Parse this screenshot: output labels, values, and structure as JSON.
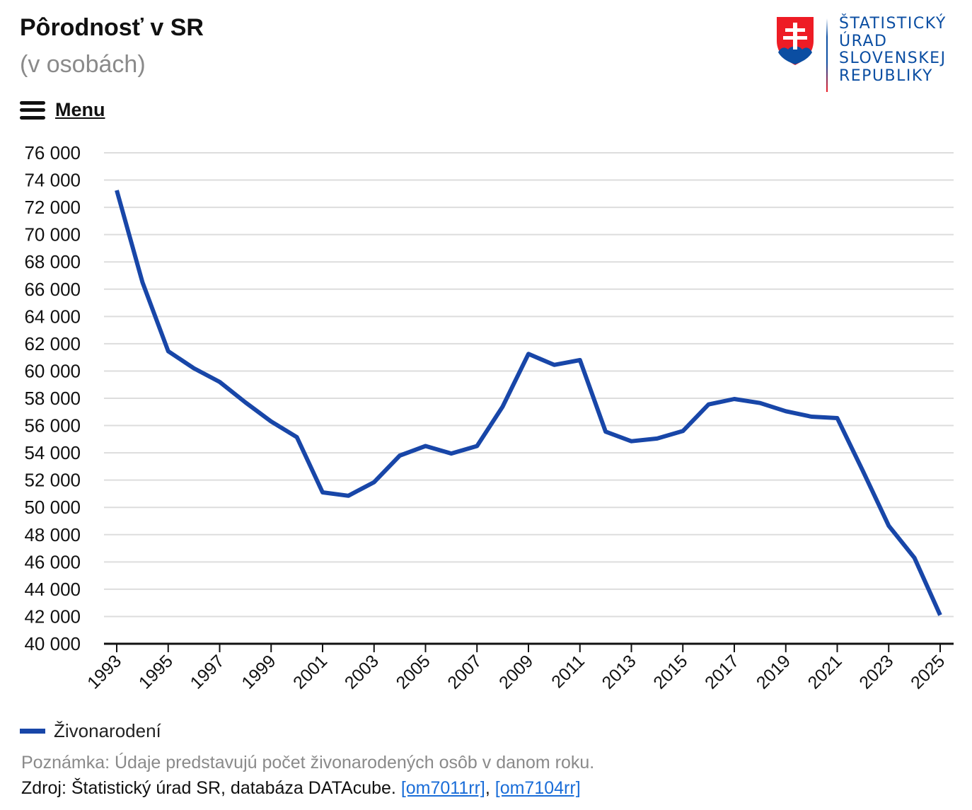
{
  "header": {
    "title": "Pôrodnosť v SR",
    "subtitle": "(v osobách)",
    "menu_label": "Menu"
  },
  "logo": {
    "lines": [
      "ŠTATISTICKÝ",
      "ÚRAD",
      "SLOVENSKEJ",
      "REPUBLIKY"
    ],
    "brand_color": "#0b4ea2",
    "accent_color": "#ee1c25"
  },
  "chart_data": {
    "type": "line",
    "title": "",
    "xlabel": "",
    "ylabel": "",
    "ylim": [
      40000,
      76000
    ],
    "y_ticks": [
      40000,
      42000,
      44000,
      46000,
      48000,
      50000,
      52000,
      54000,
      56000,
      58000,
      60000,
      62000,
      64000,
      66000,
      68000,
      70000,
      72000,
      74000,
      76000
    ],
    "y_tick_labels": [
      "40 000",
      "42 000",
      "44 000",
      "46 000",
      "48 000",
      "50 000",
      "52 000",
      "54 000",
      "56 000",
      "58 000",
      "60 000",
      "62 000",
      "64 000",
      "66 000",
      "68 000",
      "70 000",
      "72 000",
      "74 000",
      "76 000"
    ],
    "x_tick_labels": [
      "1993",
      "1995",
      "1997",
      "1999",
      "2001",
      "2003",
      "2005",
      "2007",
      "2009",
      "2011",
      "2013",
      "2015",
      "2017",
      "2019",
      "2021",
      "2023",
      "2025"
    ],
    "x": [
      1993,
      1994,
      1995,
      1996,
      1997,
      1998,
      1999,
      2000,
      2001,
      2002,
      2003,
      2004,
      2005,
      2006,
      2007,
      2008,
      2009,
      2010,
      2011,
      2012,
      2013,
      2014,
      2015,
      2016,
      2017,
      2018,
      2019,
      2020,
      2021,
      2022,
      2023,
      2024,
      2025
    ],
    "series": [
      {
        "name": "Živonarodení",
        "color": "#1846a8",
        "values": [
          73250,
          66500,
          61450,
          60200,
          59200,
          57700,
          56300,
          55150,
          51100,
          50850,
          51850,
          53800,
          54500,
          53950,
          54500,
          57400,
          61250,
          60450,
          60800,
          55550,
          54850,
          55050,
          55600,
          57550,
          57950,
          57650,
          57050,
          56650,
          56550,
          52650,
          48650,
          46300,
          42100
        ]
      }
    ],
    "grid": true,
    "legend": "bottom-left"
  },
  "footer": {
    "note": "Poznámka: Údaje predstavujú počet živonarodených osôb v danom roku.",
    "source_prefix": "Zdroj: Štatistický úrad SR, databáza DATAcube. ",
    "link1": "[om7011rr]",
    "separator": ", ",
    "link2": "[om7104rr]"
  }
}
